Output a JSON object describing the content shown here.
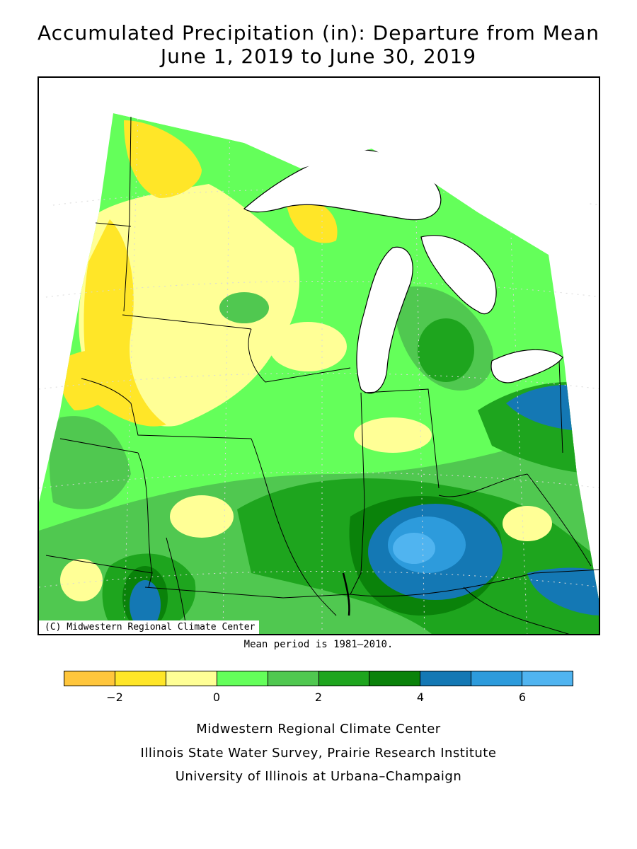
{
  "title": {
    "line1": "Accumulated Precipitation (in): Departure from Mean",
    "line2": "June 1, 2019 to June 30, 2019"
  },
  "map": {
    "credit": "(C) Midwestern Regional Climate Center",
    "region": "Upper Midwest / Great Lakes",
    "units": "inches"
  },
  "mean_note": "Mean period is 1981–2010.",
  "legend": {
    "bins": [
      {
        "range": [
          -3,
          -2
        ],
        "color": "#ffc63c"
      },
      {
        "range": [
          -2,
          -1
        ],
        "color": "#ffe628"
      },
      {
        "range": [
          -1,
          0
        ],
        "color": "#ffff96"
      },
      {
        "range": [
          0,
          1
        ],
        "color": "#64ff5a"
      },
      {
        "range": [
          1,
          2
        ],
        "color": "#50c850"
      },
      {
        "range": [
          2,
          3
        ],
        "color": "#1ea51e"
      },
      {
        "range": [
          3,
          4
        ],
        "color": "#0a820a"
      },
      {
        "range": [
          4,
          5
        ],
        "color": "#1478b4"
      },
      {
        "range": [
          5,
          6
        ],
        "color": "#2d9bdc"
      },
      {
        "range": [
          6,
          7
        ],
        "color": "#50b4f0"
      }
    ],
    "tick_labels": [
      {
        "value": -2,
        "label": "−2"
      },
      {
        "value": 0,
        "label": "0"
      },
      {
        "value": 2,
        "label": "2"
      },
      {
        "value": 4,
        "label": "4"
      },
      {
        "value": 6,
        "label": "6"
      }
    ],
    "min": -3,
    "max": 7
  },
  "footer": {
    "line1": "Midwestern Regional Climate Center",
    "line2": "Illinois State Water Survey, Prairie Research Institute",
    "line3": "University of Illinois at Urbana–Champaign"
  },
  "colors": {
    "lake": "#ffffff",
    "border": "#000000",
    "grid": "#d8d8d8"
  }
}
